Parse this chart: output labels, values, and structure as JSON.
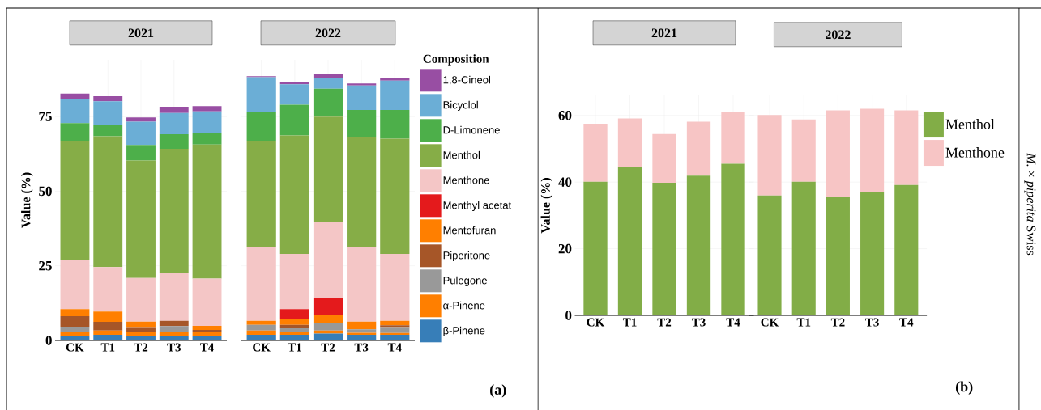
{
  "chart_data": [
    {
      "type": "bar",
      "stacked": true,
      "title": "2021",
      "ylabel": "Value (%)",
      "categories": [
        "CK",
        "T1",
        "T2",
        "T3",
        "T4"
      ],
      "ylim": [
        0,
        94
      ],
      "yticks": [
        0,
        25,
        50,
        75
      ],
      "grid": true,
      "series": [
        {
          "color": "#377eb8",
          "values": [
            1.5,
            1.9,
            1.5,
            1.5,
            1.6
          ]
        },
        {
          "color": "#ff7f00",
          "values": [
            1.5,
            1.4,
            1.3,
            1.3,
            1.4
          ]
        },
        {
          "color": "#999999",
          "values": [
            1.6,
            0,
            0,
            2.0,
            0
          ]
        },
        {
          "color": "#a65628",
          "values": [
            3.5,
            2.9,
            1.7,
            1.8,
            0.5
          ]
        },
        {
          "color": "#ff7f00",
          "values": [
            2.4,
            3.5,
            1.8,
            0,
            1.4
          ]
        },
        {
          "color": "#e41a1c",
          "values": [
            0,
            0,
            0,
            0,
            0
          ]
        },
        {
          "color": "#f4c6c6",
          "values": [
            16.6,
            14.9,
            14.6,
            16.1,
            15.8
          ]
        },
        {
          "color": "#86ad47",
          "values": [
            39.8,
            43.8,
            39.4,
            41.5,
            44.9
          ]
        },
        {
          "color": "#4daf4a",
          "values": [
            5.9,
            3.9,
            5.2,
            4.9,
            3.9
          ]
        },
        {
          "color": "#6baed6",
          "values": [
            8.1,
            7.8,
            7.8,
            7.1,
            7.2
          ]
        },
        {
          "color": "#984ea3",
          "values": [
            1.8,
            1.7,
            1.4,
            2.1,
            1.8
          ]
        }
      ]
    },
    {
      "type": "bar",
      "stacked": true,
      "title": "2022",
      "categories": [
        "CK",
        "T1",
        "T2",
        "T3",
        "T4"
      ],
      "ylim": [
        0,
        94
      ],
      "yticks": [
        0,
        25,
        50,
        75
      ],
      "grid": true,
      "tick_labels": "x",
      "legend": "right",
      "legend_title": "Composition",
      "annotations": [
        "(a)"
      ],
      "series": [
        {
          "name": "β-Pinene",
          "color": "#377eb8",
          "values": [
            1.9,
            1.9,
            2.3,
            1.9,
            1.9
          ]
        },
        {
          "name": "α-Pinene",
          "color": "#ff7f00",
          "values": [
            1.4,
            1.1,
            1.0,
            0.7,
            0.6
          ]
        },
        {
          "name": "Pulegone",
          "color": "#999999",
          "values": [
            1.9,
            1.3,
            2.4,
            1.1,
            2.0
          ]
        },
        {
          "name": "Piperitone",
          "color": "#a65628",
          "values": [
            0,
            0.9,
            0,
            0,
            0.6
          ]
        },
        {
          "name": "Mentofuran",
          "color": "#ff7f00",
          "values": [
            1.4,
            1.9,
            2.9,
            2.6,
            1.5
          ]
        },
        {
          "name": "Menthyl acetat",
          "color": "#e41a1c",
          "values": [
            0,
            3.4,
            5.5,
            0,
            0
          ]
        },
        {
          "name": "Menthone",
          "color": "#f4c6c6",
          "values": [
            24.6,
            18.5,
            25.6,
            24.9,
            22.4
          ]
        },
        {
          "name": "Menthol",
          "color": "#86ad47",
          "values": [
            35.7,
            39.7,
            35.3,
            36.8,
            38.6
          ]
        },
        {
          "name": "D-Limonene",
          "color": "#4daf4a",
          "values": [
            9.5,
            10.3,
            9.3,
            9.2,
            9.6
          ]
        },
        {
          "name": "Bicyclol",
          "color": "#6baed6",
          "values": [
            11.8,
            6.8,
            3.6,
            8.2,
            9.8
          ]
        },
        {
          "name": "1,8-Cineol",
          "color": "#984ea3",
          "values": [
            0.3,
            0.6,
            1.4,
            0.7,
            0.9
          ]
        }
      ]
    },
    {
      "type": "bar",
      "stacked": true,
      "title": "2021",
      "ylabel": "Value (%)",
      "categories": [
        "CK",
        "T1",
        "T2",
        "T3",
        "T4"
      ],
      "ylim": [
        0,
        66
      ],
      "yticks": [
        0,
        20,
        40,
        60
      ],
      "grid": true,
      "series": [
        {
          "color": "#82ad47",
          "values": [
            40.1,
            44.5,
            39.8,
            41.9,
            45.5
          ]
        },
        {
          "color": "#f7c5c5",
          "values": [
            17.4,
            14.6,
            14.6,
            16.2,
            15.5
          ]
        }
      ]
    },
    {
      "type": "bar",
      "stacked": true,
      "title": "2022",
      "categories": [
        "CK",
        "T1",
        "T2",
        "T3",
        "T4"
      ],
      "ylim": [
        0,
        66
      ],
      "yticks": [
        0,
        20,
        40,
        60
      ],
      "grid": true,
      "tick_labels": "x",
      "legend": "right",
      "annotations": [
        "(b)",
        "*M.* × *piperita* Swiss"
      ],
      "series": [
        {
          "name": "Menthol",
          "color": "#82ad47",
          "values": [
            36.0,
            40.1,
            35.6,
            37.1,
            39.1
          ]
        },
        {
          "name": "Menthone",
          "color": "#f7c5c5",
          "values": [
            24.1,
            18.7,
            25.9,
            24.9,
            22.4
          ]
        }
      ]
    }
  ]
}
